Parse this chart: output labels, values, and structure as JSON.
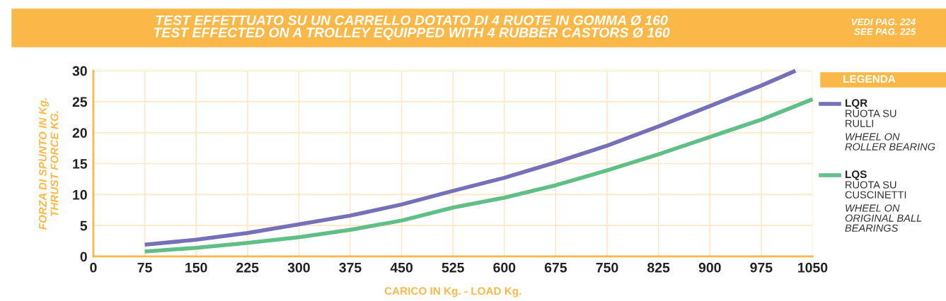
{
  "chart_data": {
    "type": "line",
    "title": "TEST EFFETTUATO SU UN CARRELLO DOTATO DI 4 RUOTE IN GOMMA Ø 160\nTEST EFFECTED ON A TROLLEY EQUIPPED WITH 4 RUBBER CASTORS Ø 160",
    "xlabel": "CARICO IN Kg. - LOAD Kg.",
    "ylabel": "FORZA DI SPUNTO IN Kg.\nTHRUST FORCE KG.",
    "legend_title": "LEGENDA",
    "annotations": [
      "VEDI PAG. 224\nSEE PAG. 225",
      "RUOTA SU\nRULLI",
      "WHEEL ON\nROLLER BEARING",
      "RUOTA SU\nCUSCINETTI",
      "WHEEL ON\nORIGINAL BALL\nBEARINGS"
    ],
    "series": [
      {
        "name": "LQR",
        "color": "#7570b8",
        "x": [
          75,
          150,
          225,
          300,
          375,
          450,
          525,
          600,
          675,
          750,
          825,
          900,
          975,
          1025
        ],
        "values": [
          1.9,
          2.7,
          3.8,
          5.2,
          6.6,
          8.4,
          10.6,
          12.7,
          15.2,
          17.9,
          21,
          24.3,
          27.6,
          30
        ]
      },
      {
        "name": "LQS",
        "color": "#5fbf86",
        "x": [
          75,
          150,
          225,
          300,
          375,
          450,
          525,
          600,
          675,
          750,
          825,
          900,
          975,
          1050
        ],
        "values": [
          0.8,
          1.4,
          2.2,
          3.1,
          4.3,
          5.8,
          7.9,
          9.5,
          11.5,
          13.9,
          16.5,
          19.3,
          22.1,
          25.4
        ]
      }
    ],
    "xlim": [
      0,
      1050
    ],
    "xticks": [
      0,
      75,
      150,
      225,
      300,
      375,
      450,
      525,
      600,
      675,
      750,
      825,
      900,
      975,
      1050
    ],
    "ylim": [
      0,
      30
    ],
    "yticks": [
      0,
      5,
      10,
      15,
      20,
      25,
      30
    ],
    "grid": true,
    "legend": "right",
    "line_style": "solid",
    "marker": "none"
  }
}
